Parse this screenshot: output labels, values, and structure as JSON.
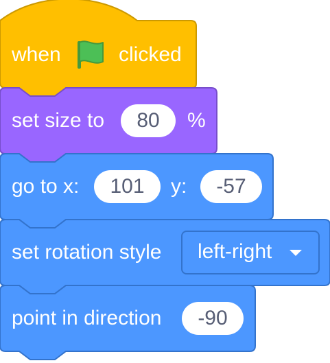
{
  "blocks": {
    "event": {
      "label_when": "when",
      "flag_icon": "green-flag-icon",
      "label_clicked": "clicked"
    },
    "set_size": {
      "label": "set size to",
      "value": "80",
      "suffix": "%"
    },
    "go_to": {
      "label_x": "go to x:",
      "x_value": "101",
      "label_y": "y:",
      "y_value": "-57"
    },
    "rotation_style": {
      "label": "set rotation style",
      "value": "left-right"
    },
    "point_direction": {
      "label": "point in direction",
      "value": "-90"
    }
  },
  "colors": {
    "events": "#ffbf00",
    "looks": "#9966ff",
    "motion": "#4c97ff",
    "field_text": "#575e75",
    "flag": "#4cbf56"
  }
}
